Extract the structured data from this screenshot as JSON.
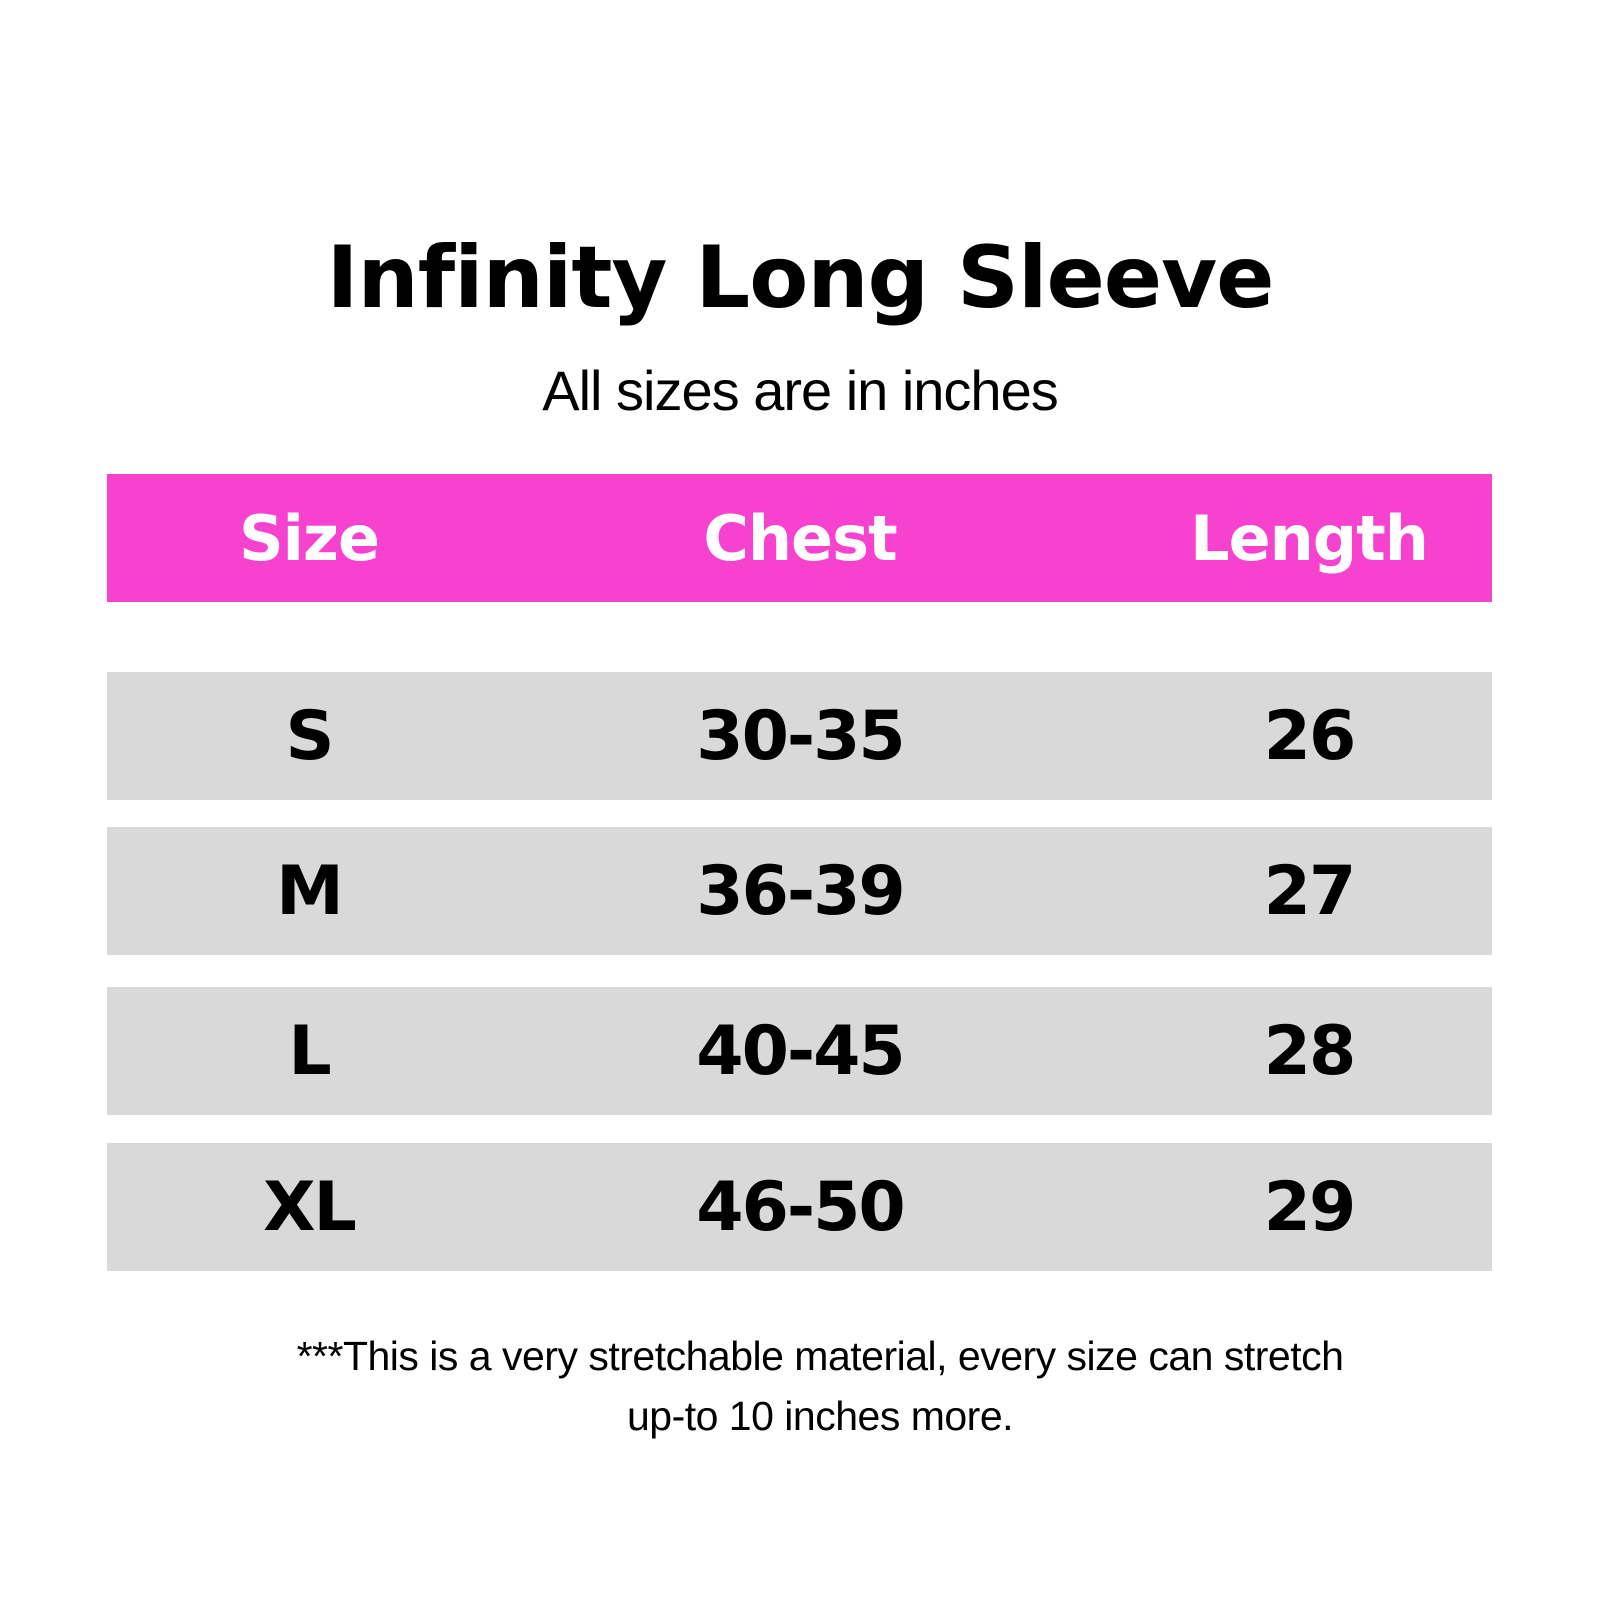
{
  "title": "Infinity Long Sleeve",
  "subtitle": "All sizes are in inches",
  "colors": {
    "header_bg": "#f741cf",
    "row_bg": "#d9d9d9",
    "header_text": "#ffffff"
  },
  "table": {
    "headers": [
      "Size",
      "Chest",
      "Length"
    ],
    "rows": [
      [
        "S",
        "30-35",
        "26"
      ],
      [
        "M",
        "36-39",
        "27"
      ],
      [
        "L",
        "40-45",
        "28"
      ],
      [
        "XL",
        "46-50",
        "29"
      ]
    ]
  },
  "note": {
    "line1": "***This is a very stretchable material, every size can stretch",
    "line2": "up-to 10 inches more."
  }
}
